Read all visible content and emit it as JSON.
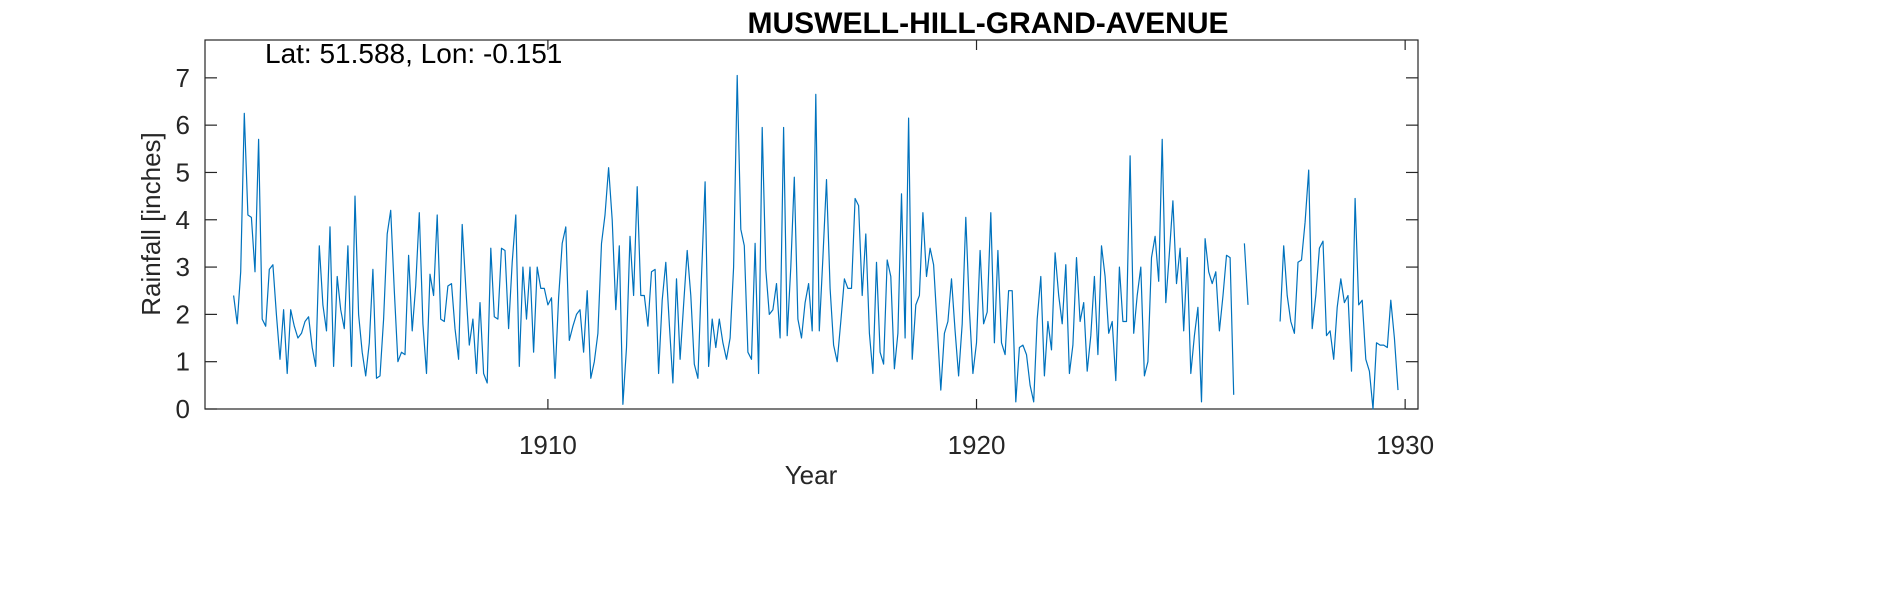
{
  "chart_data": {
    "type": "line",
    "title": "MUSWELL-HILL-GRAND-AVENUE",
    "xlabel": "Year",
    "ylabel": "Rainfall [inches]",
    "annotation": "Lat: 51.588, Lon: -0.151",
    "xlim": [
      1902,
      1930.3
    ],
    "ylim": [
      0,
      7.8
    ],
    "x_ticks": [
      1910,
      1920,
      1930
    ],
    "y_ticks": [
      0,
      1,
      2,
      3,
      4,
      5,
      6,
      7
    ],
    "grid": false,
    "colors": {
      "line": "#0072BD"
    },
    "series": [
      {
        "start": 1902.667,
        "step": 0.08333,
        "values": [
          2.4,
          1.8,
          2.9,
          6.25,
          4.1,
          4.05,
          2.9,
          5.7,
          1.9,
          1.75,
          2.95,
          3.05,
          2.0,
          1.05,
          2.1,
          0.75,
          2.1,
          1.75,
          1.5,
          1.6,
          1.85,
          1.95,
          1.3,
          0.9,
          3.45,
          2.2,
          1.65,
          3.85,
          0.9,
          2.8,
          2.1,
          1.7,
          3.45,
          0.9,
          4.5,
          2.0,
          1.2,
          0.7,
          1.4,
          2.95,
          0.65,
          0.7,
          1.9,
          3.7,
          4.2,
          2.5,
          1.0,
          1.2,
          1.15,
          3.25,
          1.65,
          2.6,
          4.15,
          1.8,
          0.75,
          2.85,
          2.4,
          4.1,
          1.9,
          1.85,
          2.6,
          2.65,
          1.7,
          1.05,
          3.9,
          2.6,
          1.35,
          1.9,
          0.75,
          2.25,
          0.75,
          0.55,
          3.4,
          1.95,
          1.9,
          3.4,
          3.35,
          1.7,
          3.1,
          4.1,
          0.9,
          3.0,
          1.9,
          3.0,
          1.2,
          3.0,
          2.55,
          2.55,
          2.2,
          2.35,
          0.65,
          2.35,
          3.5,
          3.85,
          1.45,
          1.75,
          2.0,
          2.1,
          1.2,
          2.5,
          0.65,
          1.0,
          1.6,
          3.5,
          4.1,
          5.1,
          4.0,
          2.1,
          3.45,
          0.1,
          1.3,
          3.65,
          2.4,
          4.7,
          2.4,
          2.4,
          1.75,
          2.9,
          2.95,
          0.75,
          2.3,
          3.1,
          1.8,
          0.55,
          2.75,
          1.05,
          2.2,
          3.35,
          2.4,
          0.95,
          0.65,
          2.8,
          4.8,
          0.9,
          1.9,
          1.3,
          1.9,
          1.4,
          1.05,
          1.5,
          3.0,
          7.05,
          3.8,
          3.45,
          1.2,
          1.05,
          3.5,
          0.75,
          5.95,
          2.95,
          2.0,
          2.1,
          2.65,
          1.5,
          5.95,
          1.55,
          3.0,
          4.9,
          1.9,
          1.5,
          2.25,
          2.65,
          1.65,
          6.65,
          1.65,
          3.2,
          4.85,
          2.55,
          1.35,
          1.0,
          1.85,
          2.75,
          2.55,
          2.55,
          4.45,
          4.3,
          2.4,
          3.7,
          1.6,
          0.75,
          3.1,
          1.2,
          0.95,
          3.15,
          2.8,
          0.85,
          1.6,
          4.55,
          1.5,
          6.15,
          1.05,
          2.2,
          2.4,
          4.15,
          2.8,
          3.4,
          3.05,
          1.75,
          0.4,
          1.6,
          1.85,
          2.75,
          1.65,
          0.7,
          1.8,
          4.05,
          2.1,
          0.75,
          1.4,
          3.35,
          1.8,
          2.05,
          4.15,
          1.4,
          3.35,
          1.4,
          1.15,
          2.5,
          2.5,
          0.15,
          1.3,
          1.35,
          1.15,
          0.5,
          0.15,
          1.9,
          2.8,
          0.7,
          1.85,
          1.25,
          3.3,
          2.4,
          1.8,
          3.05,
          0.75,
          1.35,
          3.2,
          1.85,
          2.25,
          0.8,
          1.55,
          2.8,
          1.15,
          3.45,
          2.8,
          1.6,
          1.85,
          0.6,
          3.0,
          1.85,
          1.85,
          5.35,
          1.6,
          2.4,
          3.0,
          0.7,
          1.0,
          3.2,
          3.65,
          2.7,
          5.7,
          2.25,
          3.3,
          4.4,
          2.65,
          3.4,
          1.65,
          3.2,
          0.75,
          1.55,
          2.15,
          0.15,
          3.6,
          2.9,
          2.65,
          2.9,
          1.65,
          2.4,
          3.25,
          3.2,
          0.3,
          null,
          null,
          3.5,
          2.2,
          null,
          null,
          null,
          null,
          null,
          null,
          null,
          null,
          1.85,
          3.45,
          2.4,
          1.85,
          1.6,
          3.1,
          3.15,
          3.95,
          5.05,
          1.7,
          2.4,
          3.4,
          3.55,
          1.55,
          1.65,
          1.05,
          2.15,
          2.75,
          2.25,
          2.4,
          0.8,
          4.45,
          2.2,
          2.3,
          1.05,
          0.8,
          0.0,
          1.4,
          1.35,
          1.35,
          1.3,
          2.3,
          1.5,
          0.4
        ]
      }
    ]
  }
}
